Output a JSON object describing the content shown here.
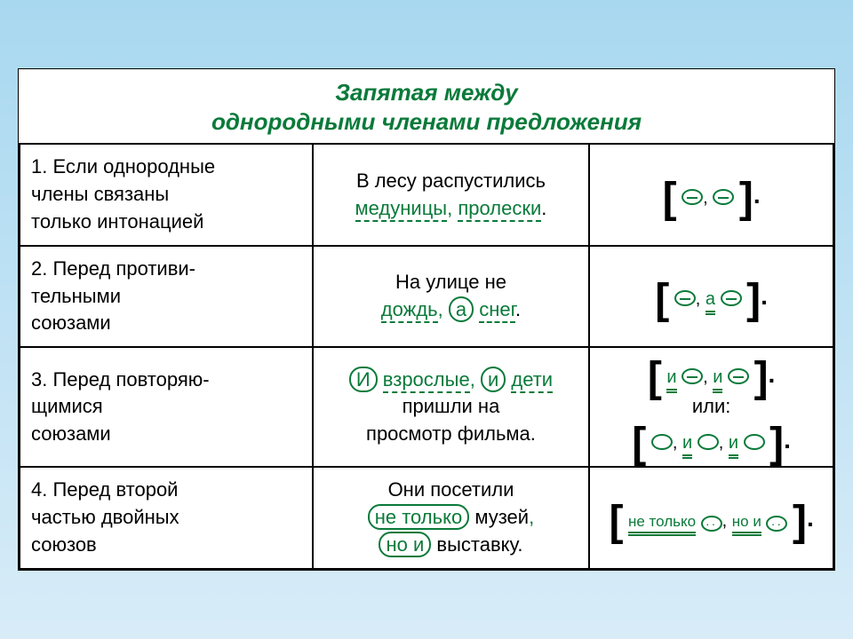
{
  "colors": {
    "background_gradient_top": "#a8d8f0",
    "background_gradient_bottom": "#d8ecf8",
    "card_bg": "#ffffff",
    "title_color": "#0a7a3a",
    "text_color": "#000000",
    "accent_color": "#0a7a3a",
    "border_color": "#000000"
  },
  "title_line1": "Запятая между",
  "title_line2": "однородными членами предложения",
  "rows": [
    {
      "rule_lines": [
        "1. Если однородные",
        "члены связаны",
        "только интонацией"
      ],
      "example": {
        "prefix": "В лесу распустились",
        "w1": "медуницы",
        "comma": ",",
        "w2": "пролески",
        "end": "."
      },
      "schema": {
        "type": "simple"
      }
    },
    {
      "rule_lines": [
        "2. Перед противи-",
        "тельными",
        "союзами"
      ],
      "example": {
        "prefix": "На улице не",
        "w1": "дождь",
        "comma": ",",
        "conj": "а",
        "w2": "снег",
        "end": "."
      },
      "schema": {
        "type": "adversative",
        "conj": "а"
      }
    },
    {
      "rule_lines": [
        "3. Перед повторяю-",
        "щимися",
        "союзами"
      ],
      "example": {
        "c1": "И",
        "w1": "взрослые",
        "comma": ",",
        "c2": "и",
        "w2": "дети",
        "tail1": "пришли на",
        "tail2": "просмотр фильма."
      },
      "schema": {
        "type": "repeated",
        "conj": "и",
        "alt_label": "или:"
      }
    },
    {
      "rule_lines": [
        "4. Перед второй",
        "частью двойных",
        "союзов"
      ],
      "example": {
        "prefix": "Они посетили",
        "c1": "не только",
        "w1": "музей",
        "comma": ",",
        "c2": "но и",
        "w2": "выставку",
        "end": "."
      },
      "schema": {
        "type": "double",
        "c1": "не только",
        "c2": "но и"
      }
    }
  ]
}
